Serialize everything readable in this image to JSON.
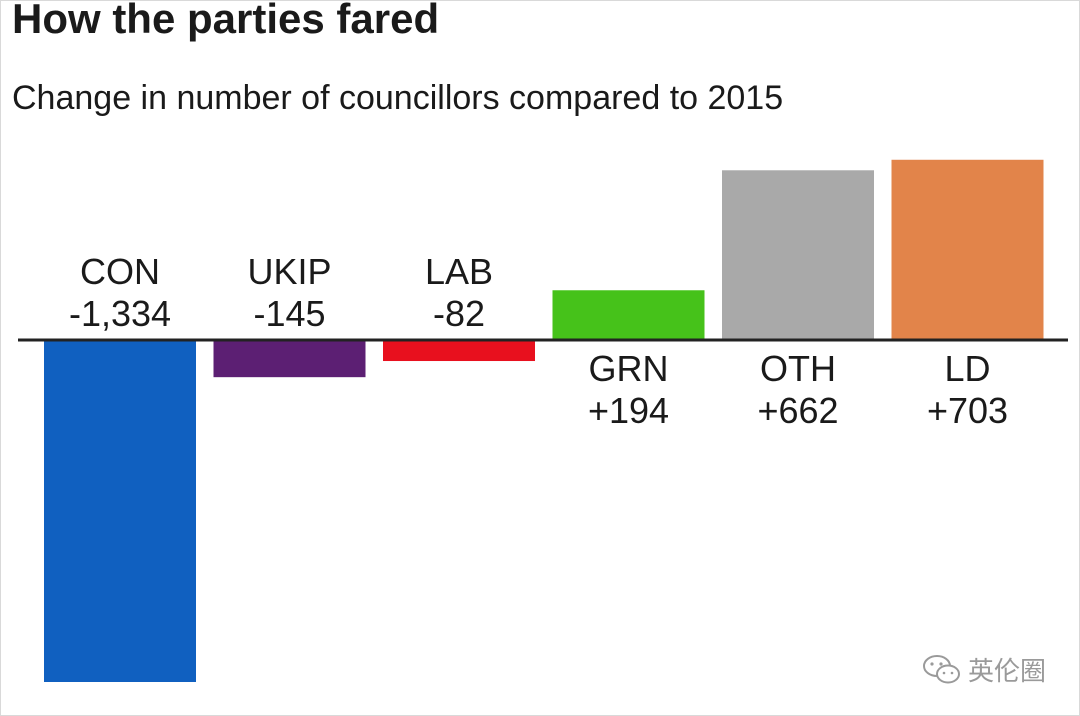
{
  "chart_data": {
    "type": "bar",
    "title": "How the parties fared",
    "subtitle": "Change in number of councillors compared to 2015",
    "categories": [
      "CON",
      "UKIP",
      "LAB",
      "GRN",
      "OTH",
      "LD"
    ],
    "values": [
      -1334,
      -145,
      -82,
      194,
      662,
      703
    ],
    "value_labels": [
      "-1,334",
      "-145",
      "-82",
      "+194",
      "+662",
      "+703"
    ],
    "colors": [
      "#1060c0",
      "#5c1f73",
      "#e8101e",
      "#46c21a",
      "#a9a9a9",
      "#e2844a"
    ],
    "ylim": [
      -1334,
      703
    ],
    "xlabel": "",
    "ylabel": "",
    "grid": false
  },
  "watermark": {
    "text": "英伦圈",
    "icon": "wechat-icon"
  }
}
